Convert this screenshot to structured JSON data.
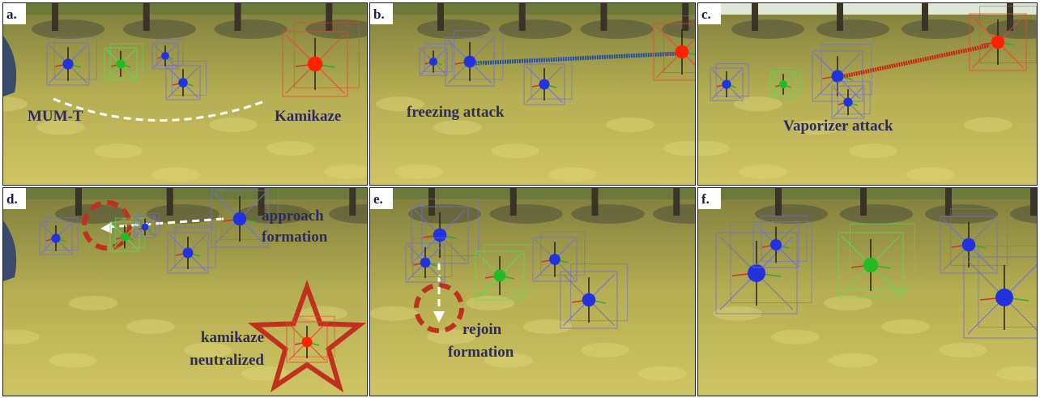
{
  "panels": [
    {
      "label": "a.",
      "annotations": [
        {
          "lines": [
            "MUM-T"
          ]
        },
        {
          "lines": [
            "Kamikaze"
          ]
        }
      ]
    },
    {
      "label": "b.",
      "annotations": [
        {
          "lines": [
            "freezing attack"
          ]
        }
      ]
    },
    {
      "label": "c.",
      "annotations": [
        {
          "lines": [
            "Vaporizer attack"
          ]
        }
      ]
    },
    {
      "label": "d.",
      "annotations": [
        {
          "lines": [
            "approach",
            "formation"
          ]
        },
        {
          "lines": [
            "kamikaze",
            "neutralized"
          ]
        }
      ]
    },
    {
      "label": "e.",
      "annotations": [
        {
          "lines": [
            "rejoin",
            "formation"
          ]
        }
      ]
    },
    {
      "label": "f.",
      "annotations": []
    }
  ]
}
